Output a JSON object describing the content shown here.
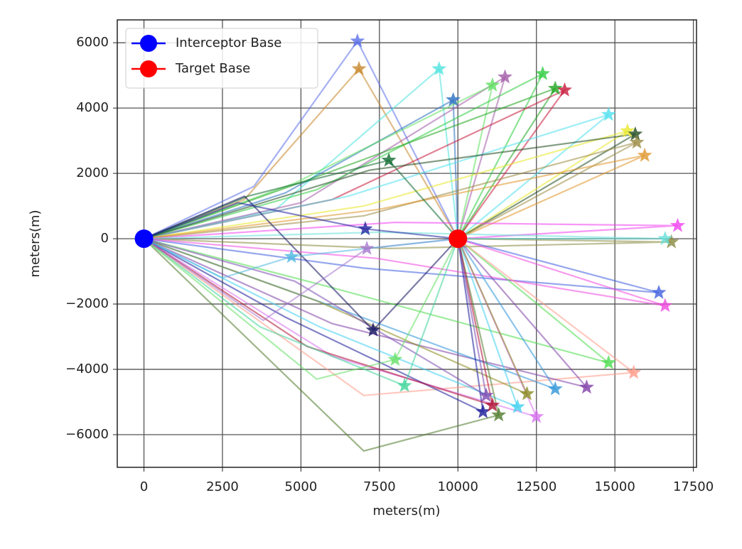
{
  "chart_data": {
    "type": "line",
    "xlabel": "meters(m)",
    "ylabel": "meters(m)",
    "xlim": [
      -850,
      17600
    ],
    "ylim": [
      -7000,
      6700
    ],
    "xticks": [
      0,
      2500,
      5000,
      7500,
      10000,
      12500,
      15000,
      17500
    ],
    "yticks": [
      {
        "value": -6000,
        "label": "−6000"
      },
      {
        "value": -4000,
        "label": "−4000"
      },
      {
        "value": -2000,
        "label": "−2000"
      },
      0,
      2000,
      4000,
      6000
    ],
    "grid": true,
    "legend": "upper left",
    "series": [
      {
        "name": "Interceptor Base",
        "color": "#0000ff",
        "x": [
          0
        ],
        "y": [
          0
        ]
      },
      {
        "name": "Target Base",
        "color": "#ff0000",
        "x": [
          10000
        ],
        "y": [
          0
        ]
      }
    ],
    "trajectories": [
      {
        "color": "#5a6fe8",
        "x": [
          0,
          3500,
          6800,
          10000
        ],
        "y": [
          0,
          1600,
          6050,
          0
        ]
      },
      {
        "color": "#c8862a",
        "x": [
          0,
          3200,
          6850,
          10000
        ],
        "y": [
          0,
          1200,
          5200,
          0
        ]
      },
      {
        "color": "#4fe3df",
        "x": [
          0,
          4200,
          9400,
          10000
        ],
        "y": [
          0,
          900,
          5200,
          0
        ]
      },
      {
        "color": "#2a6fc0",
        "x": [
          0,
          4500,
          9850,
          10000
        ],
        "y": [
          0,
          1400,
          4250,
          0
        ]
      },
      {
        "color": "#a25aa8",
        "x": [
          0,
          5000,
          11500,
          10000
        ],
        "y": [
          0,
          1100,
          4950,
          0
        ]
      },
      {
        "color": "#5fe05f",
        "x": [
          0,
          4800,
          11100,
          10000
        ],
        "y": [
          0,
          1700,
          4700,
          0
        ]
      },
      {
        "color": "#2ecc40",
        "x": [
          0,
          5500,
          12700,
          10000
        ],
        "y": [
          0,
          1500,
          5050,
          0
        ]
      },
      {
        "color": "#1fa61f",
        "x": [
          0,
          5800,
          13100,
          10000
        ],
        "y": [
          0,
          2000,
          4600,
          0
        ]
      },
      {
        "color": "#c8193c",
        "x": [
          0,
          6000,
          13400,
          10000
        ],
        "y": [
          0,
          1200,
          4550,
          0
        ]
      },
      {
        "color": "#4ee0ee",
        "x": [
          0,
          6500,
          14800,
          10000
        ],
        "y": [
          0,
          1300,
          3800,
          0
        ]
      },
      {
        "color": "#e8e82a",
        "x": [
          0,
          7000,
          15400,
          10000
        ],
        "y": [
          0,
          1000,
          3300,
          0
        ]
      },
      {
        "color": "#1f4a1f",
        "x": [
          0,
          7200,
          15650,
          10000
        ],
        "y": [
          0,
          2100,
          3200,
          0
        ]
      },
      {
        "color": "#9a8a40",
        "x": [
          0,
          7000,
          15700,
          10000
        ],
        "y": [
          0,
          700,
          2950,
          0
        ]
      },
      {
        "color": "#e0962a",
        "x": [
          0,
          7500,
          15950,
          10000
        ],
        "y": [
          0,
          900,
          2550,
          0
        ]
      },
      {
        "color": "#0f6a30",
        "x": [
          0,
          3300,
          7800,
          10000
        ],
        "y": [
          0,
          1300,
          2400,
          0
        ]
      },
      {
        "color": "#f040f0",
        "x": [
          0,
          8000,
          17000,
          10000
        ],
        "y": [
          0,
          500,
          400,
          0
        ]
      },
      {
        "color": "#8a8a40",
        "x": [
          0,
          7800,
          16800,
          10000
        ],
        "y": [
          0,
          -300,
          -100,
          0
        ]
      },
      {
        "color": "#66e0d8",
        "x": [
          0,
          7500,
          16600,
          10000
        ],
        "y": [
          0,
          200,
          0,
          0
        ]
      },
      {
        "color": "#3f5fdf",
        "x": [
          0,
          7000,
          16400,
          10000
        ],
        "y": [
          0,
          -900,
          -1650,
          0
        ]
      },
      {
        "color": "#f048e0",
        "x": [
          0,
          7400,
          16600,
          10000
        ],
        "y": [
          0,
          -600,
          -2050,
          0
        ]
      },
      {
        "color": "#4edc4e",
        "x": [
          0,
          6000,
          14800,
          10000
        ],
        "y": [
          0,
          -1500,
          -3800,
          0
        ]
      },
      {
        "color": "#ff9a88",
        "x": [
          0,
          7000,
          15600,
          10000
        ],
        "y": [
          0,
          -4800,
          -4100,
          0
        ]
      },
      {
        "color": "#7f3fa8",
        "x": [
          0,
          6000,
          14100,
          10000
        ],
        "y": [
          0,
          -2600,
          -4550,
          0
        ]
      },
      {
        "color": "#2f96d8",
        "x": [
          0,
          5800,
          13100,
          10000
        ],
        "y": [
          0,
          -2000,
          -4600,
          0
        ]
      },
      {
        "color": "#d873f0",
        "x": [
          0,
          6000,
          12500,
          10000
        ],
        "y": [
          0,
          -3600,
          -5450,
          0
        ]
      },
      {
        "color": "#40d0f0",
        "x": [
          0,
          5600,
          11900,
          10000
        ],
        "y": [
          0,
          -2700,
          -5150,
          0
        ]
      },
      {
        "color": "#8a8a20",
        "x": [
          0,
          5500,
          12200,
          10000
        ],
        "y": [
          0,
          -1900,
          -4750,
          0
        ]
      },
      {
        "color": "#4f7a2a",
        "x": [
          0,
          7000,
          11300,
          10000
        ],
        "y": [
          0,
          -6500,
          -5400,
          0
        ]
      },
      {
        "color": "#1a1a9a",
        "x": [
          0,
          4500,
          10800,
          10000
        ],
        "y": [
          0,
          -2400,
          -5300,
          0
        ]
      },
      {
        "color": "#b01035",
        "x": [
          0,
          5200,
          11100,
          10000
        ],
        "y": [
          0,
          -3300,
          -5100,
          0
        ]
      },
      {
        "color": "#7a4ab0",
        "x": [
          0,
          4800,
          10900,
          10000
        ],
        "y": [
          0,
          -1300,
          -4800,
          0
        ]
      },
      {
        "color": "#3fd49a",
        "x": [
          0,
          3700,
          8300,
          10000
        ],
        "y": [
          0,
          -2700,
          -4500,
          0
        ]
      },
      {
        "color": "#66e066",
        "x": [
          0,
          5500,
          8000,
          10000
        ],
        "y": [
          0,
          -4300,
          -3700,
          0
        ]
      },
      {
        "color": "#10105e",
        "x": [
          0,
          3200,
          7300,
          10000
        ],
        "y": [
          0,
          1300,
          -2800,
          0
        ]
      },
      {
        "color": "#2020a0",
        "x": [
          0,
          3000,
          7050,
          10000
        ],
        "y": [
          0,
          1100,
          300,
          0
        ]
      },
      {
        "color": "#a878d0",
        "x": [
          0,
          3800,
          7100,
          10000
        ],
        "y": [
          0,
          -2500,
          -300,
          0
        ]
      },
      {
        "color": "#50b8e0",
        "x": [
          0,
          2500,
          4700,
          10000
        ],
        "y": [
          0,
          -1200,
          -550,
          0
        ]
      }
    ]
  }
}
